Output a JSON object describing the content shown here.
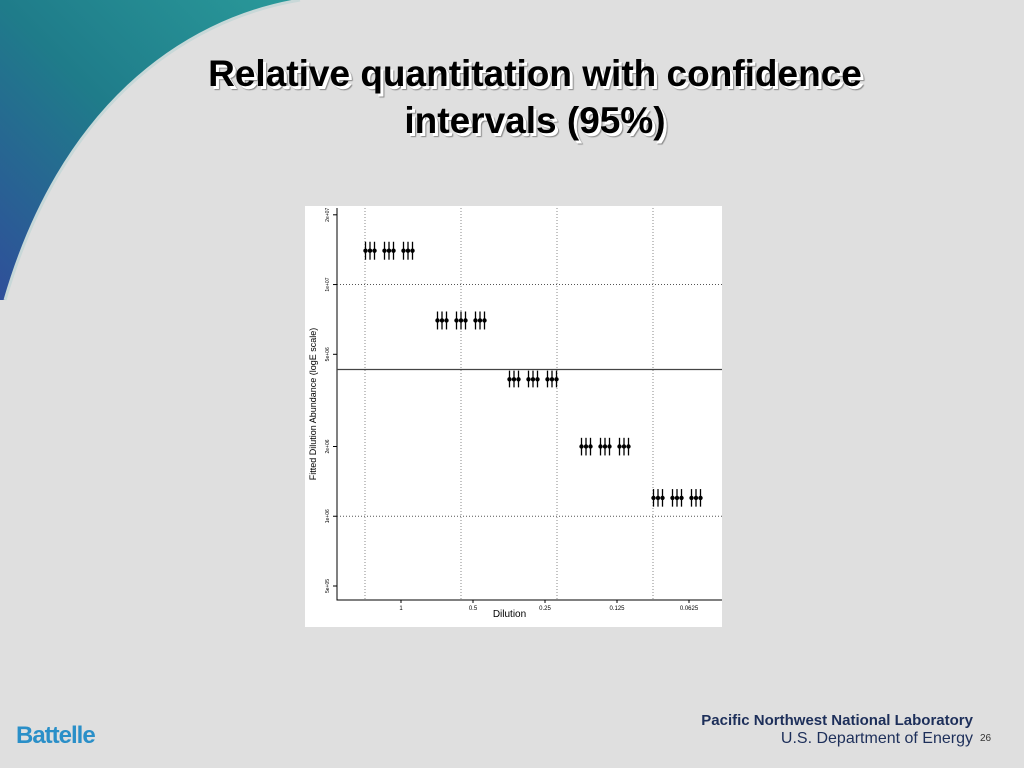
{
  "title": "Relative quantitation with confidence intervals (95%)",
  "footer": {
    "logo": "Battelle",
    "lab": "Pacific Northwest National Laboratory",
    "department": "U.S. Department of Energy",
    "page": "26"
  },
  "chart_data": {
    "type": "errorbar",
    "xlabel": "Dilution",
    "ylabel": "Fitted Dilution Abundance (logE scale)",
    "categories": [
      "1",
      "0.5",
      "0.25",
      "0.125",
      "0.0625"
    ],
    "ylog": true,
    "ylim": [
      435000,
      21400000
    ],
    "yticks": [
      {
        "value": 500000,
        "label": "5e+05"
      },
      {
        "value": 1000000,
        "label": "1e+06"
      },
      {
        "value": 2000000,
        "label": "2e+06"
      },
      {
        "value": 5000000,
        "label": "5e+06"
      },
      {
        "value": 10000000,
        "label": "1e+07"
      },
      {
        "value": 20000000,
        "label": "2e+07"
      }
    ],
    "dotted_hlines": [
      10000000,
      1000000
    ],
    "hline": 4300000,
    "color": "#000000",
    "series": [
      {
        "values": [
          14000000,
          7000000,
          3900000,
          2000000,
          1200000
        ],
        "lower": [
          12800000,
          6400000,
          3600000,
          1830000,
          1100000
        ],
        "upper": [
          15300000,
          7650000,
          4250000,
          2180000,
          1310000
        ]
      },
      {
        "values": [
          14000000,
          7000000,
          3900000,
          2000000,
          1200000
        ],
        "lower": [
          12800000,
          6400000,
          3600000,
          1830000,
          1100000
        ],
        "upper": [
          15300000,
          7650000,
          4250000,
          2180000,
          1310000
        ]
      },
      {
        "values": [
          14000000,
          7000000,
          3900000,
          2000000,
          1200000
        ],
        "lower": [
          12800000,
          6400000,
          3600000,
          1830000,
          1100000
        ],
        "upper": [
          15300000,
          7650000,
          4250000,
          2180000,
          1310000
        ]
      }
    ]
  }
}
